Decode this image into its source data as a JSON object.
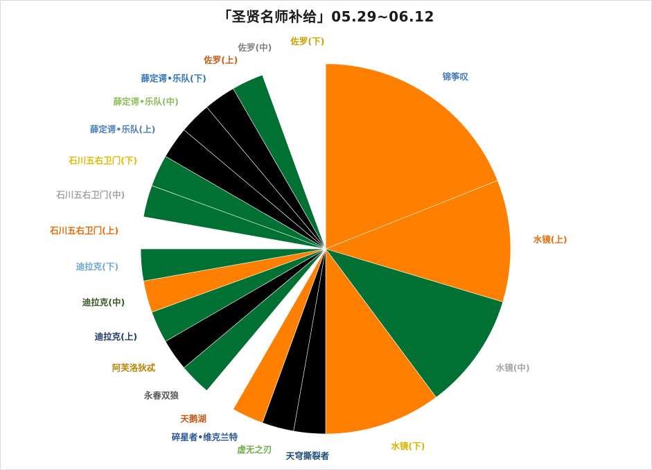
{
  "chart_data": {
    "type": "pie",
    "title": "「圣贤名师补给」05.29~06.12",
    "start": "top",
    "direction": "clockwise",
    "slices": [
      {
        "label": "锦筝叹",
        "value": 20.5,
        "color": "#ff7f00",
        "label_color": "#4a7ebb"
      },
      {
        "label": "水镜(上)",
        "value": 11.5,
        "color": "#ff7f00",
        "label_color": "#e46c0a"
      },
      {
        "label": "水镜(中)",
        "value": 11.0,
        "color": "#007033",
        "label_color": "#a5a5a5"
      },
      {
        "label": "水镜(下)",
        "value": 11.0,
        "color": "#ff7f00",
        "label_color": "#d9b300"
      },
      {
        "label": "天穹撕裂者",
        "value": 3.0,
        "color": "#000000",
        "label_color": "#1f4e79"
      },
      {
        "label": "虚无之刃",
        "value": 3.0,
        "color": "#000000",
        "label_color": "#70ad47"
      },
      {
        "label": "碎星者•维克兰特",
        "value": 3.0,
        "color": "#ff7f00",
        "label_color": "#2e5597"
      },
      {
        "label": "天鹅湖",
        "value": 3.0,
        "color": "#ffffff",
        "label_color": "#c55a11"
      },
      {
        "label": "永春双狼",
        "value": 3.0,
        "color": "#007033",
        "label_color": "#595959"
      },
      {
        "label": "阿芙洛狄忒",
        "value": 3.0,
        "color": "#000000",
        "label_color": "#b8860b"
      },
      {
        "label": "迪拉克(上)",
        "value": 3.0,
        "color": "#007033",
        "label_color": "#1f3864"
      },
      {
        "label": "迪拉克(中)",
        "value": 3.0,
        "color": "#ff7f00",
        "label_color": "#375623"
      },
      {
        "label": "迪拉克(下)",
        "value": 3.0,
        "color": "#007033",
        "label_color": "#6fa8dc"
      },
      {
        "label": "石川五右卫门(上)",
        "value": 3.0,
        "color": "#ffffff",
        "label_color": "#e46c0a"
      },
      {
        "label": "石川五右卫门(中)",
        "value": 3.0,
        "color": "#007033",
        "label_color": "#a5a5a5"
      },
      {
        "label": "石川五右卫门(下)",
        "value": 3.0,
        "color": "#007033",
        "label_color": "#e6b800"
      },
      {
        "label": "薛定谔•乐队(上)",
        "value": 3.0,
        "color": "#000000",
        "label_color": "#4a7ebb"
      },
      {
        "label": "薛定谔•乐队(中)",
        "value": 3.0,
        "color": "#000000",
        "label_color": "#8fbc5a"
      },
      {
        "label": "薛定谔•乐队(下)",
        "value": 3.0,
        "color": "#000000",
        "label_color": "#2e75b6"
      },
      {
        "label": "佐罗(上)",
        "value": 3.0,
        "color": "#007033",
        "label_color": "#c55a11"
      },
      {
        "label": "佐罗(中)",
        "value": 3.0,
        "color": "#ffffff",
        "label_color": "#7f7f7f"
      },
      {
        "label": "佐罗(下)",
        "value": 3.0,
        "color": "#ffffff",
        "label_color": "#c9a000"
      }
    ]
  }
}
